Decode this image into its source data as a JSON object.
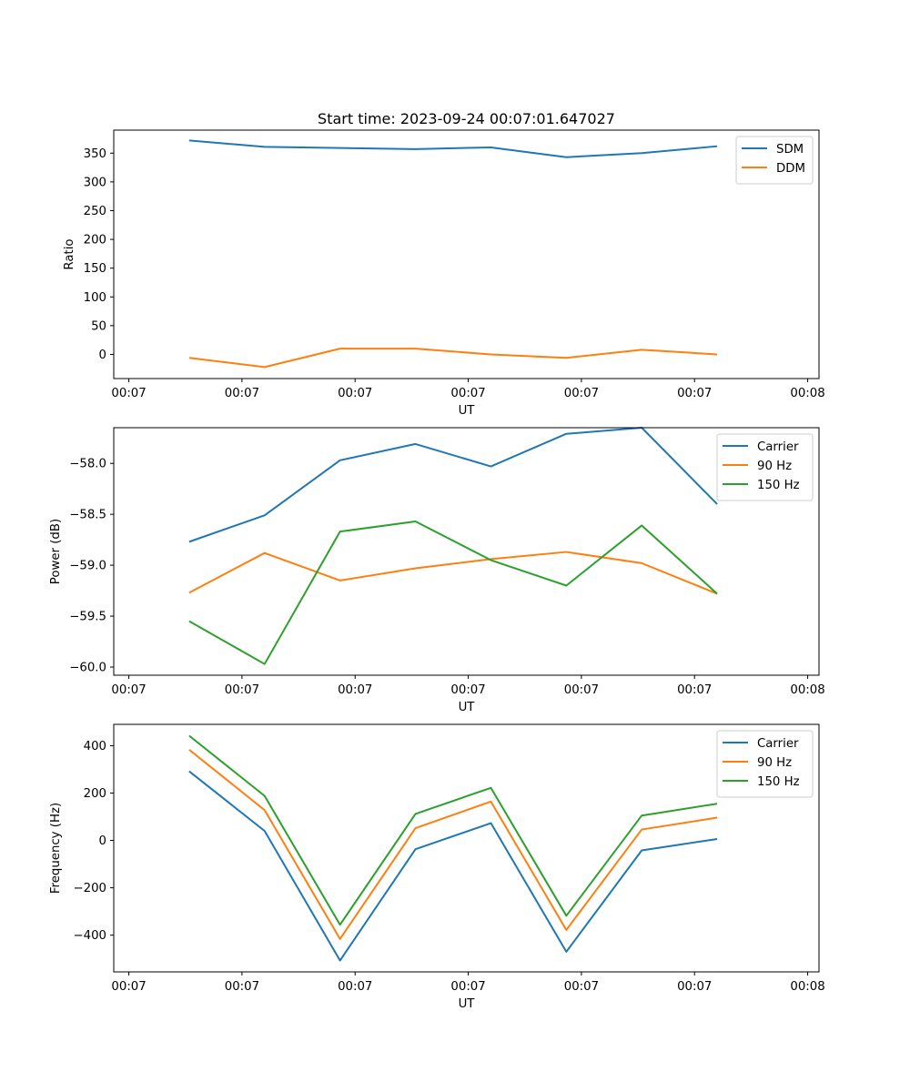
{
  "figure": {
    "title": "Start time: 2023-09-24 00:07:01.647027"
  },
  "colors": {
    "c0": "#1f77b4",
    "c1": "#ff7f0e",
    "c2": "#2ca02c"
  },
  "chart_data": [
    {
      "type": "line",
      "title": "Start time: 2023-09-24 00:07:01.647027",
      "xlabel": "UT",
      "ylabel": "Ratio",
      "x": [
        1,
        2,
        3,
        4,
        5,
        6,
        7,
        8
      ],
      "xlim": [
        0,
        9.35
      ],
      "x_ticks": [
        0.2,
        1.7,
        3.2,
        4.7,
        6.2,
        7.7,
        9.2
      ],
      "x_tick_labels": [
        "00:07",
        "00:07",
        "00:07",
        "00:07",
        "00:07",
        "00:07",
        "00:08"
      ],
      "ylim": [
        -42,
        390
      ],
      "y_ticks": [
        0,
        50,
        100,
        150,
        200,
        250,
        300,
        350
      ],
      "y_tick_labels": [
        "0",
        "50",
        "100",
        "150",
        "200",
        "250",
        "300",
        "350"
      ],
      "legend": "top-right",
      "series": [
        {
          "name": "SDM",
          "color": "#1f77b4",
          "values": [
            372,
            361,
            359,
            357,
            360,
            343,
            350,
            362
          ]
        },
        {
          "name": "DDM",
          "color": "#ff7f0e",
          "values": [
            -6,
            -22,
            10,
            10,
            0,
            -6,
            8,
            0
          ]
        }
      ]
    },
    {
      "type": "line",
      "title": "",
      "xlabel": "UT",
      "ylabel": "Power (dB)",
      "x": [
        1,
        2,
        3,
        4,
        5,
        6,
        7,
        8
      ],
      "xlim": [
        0,
        9.35
      ],
      "x_ticks": [
        0.2,
        1.7,
        3.2,
        4.7,
        6.2,
        7.7,
        9.2
      ],
      "x_tick_labels": [
        "00:07",
        "00:07",
        "00:07",
        "00:07",
        "00:07",
        "00:07",
        "00:08"
      ],
      "ylim": [
        -60.08,
        -57.65
      ],
      "y_ticks": [
        -60.0,
        -59.5,
        -59.0,
        -58.5,
        -58.0
      ],
      "y_tick_labels": [
        "−60.0",
        "−59.5",
        "−59.0",
        "−58.5",
        "−58.0"
      ],
      "legend": "top-right",
      "series": [
        {
          "name": "Carrier",
          "color": "#1f77b4",
          "values": [
            -58.77,
            -58.51,
            -57.97,
            -57.81,
            -58.03,
            -57.71,
            -57.65,
            -58.4
          ]
        },
        {
          "name": "90 Hz",
          "color": "#ff7f0e",
          "values": [
            -59.27,
            -58.88,
            -59.15,
            -59.03,
            -58.94,
            -58.87,
            -58.98,
            -59.28
          ]
        },
        {
          "name": "150 Hz",
          "color": "#2ca02c",
          "values": [
            -59.55,
            -59.97,
            -58.67,
            -58.57,
            -58.95,
            -59.2,
            -58.61,
            -59.28
          ]
        }
      ]
    },
    {
      "type": "line",
      "title": "",
      "xlabel": "UT",
      "ylabel": "Frequency (Hz)",
      "x": [
        1,
        2,
        3,
        4,
        5,
        6,
        7,
        8
      ],
      "xlim": [
        0,
        9.35
      ],
      "x_ticks": [
        0.2,
        1.7,
        3.2,
        4.7,
        6.2,
        7.7,
        9.2
      ],
      "x_tick_labels": [
        "00:07",
        "00:07",
        "00:07",
        "00:07",
        "00:07",
        "00:07",
        "00:08"
      ],
      "ylim": [
        -555,
        490
      ],
      "y_ticks": [
        -400,
        -200,
        0,
        200,
        400
      ],
      "y_tick_labels": [
        "−400",
        "−200",
        "0",
        "200",
        "400"
      ],
      "legend": "top-right",
      "series": [
        {
          "name": "Carrier",
          "color": "#1f77b4",
          "values": [
            292,
            40,
            -507,
            -37,
            73,
            -470,
            -42,
            6
          ]
        },
        {
          "name": "90 Hz",
          "color": "#ff7f0e",
          "values": [
            383,
            128,
            -416,
            52,
            164,
            -378,
            46,
            96
          ]
        },
        {
          "name": "150 Hz",
          "color": "#2ca02c",
          "values": [
            442,
            188,
            -356,
            112,
            222,
            -318,
            105,
            155
          ]
        }
      ]
    }
  ]
}
